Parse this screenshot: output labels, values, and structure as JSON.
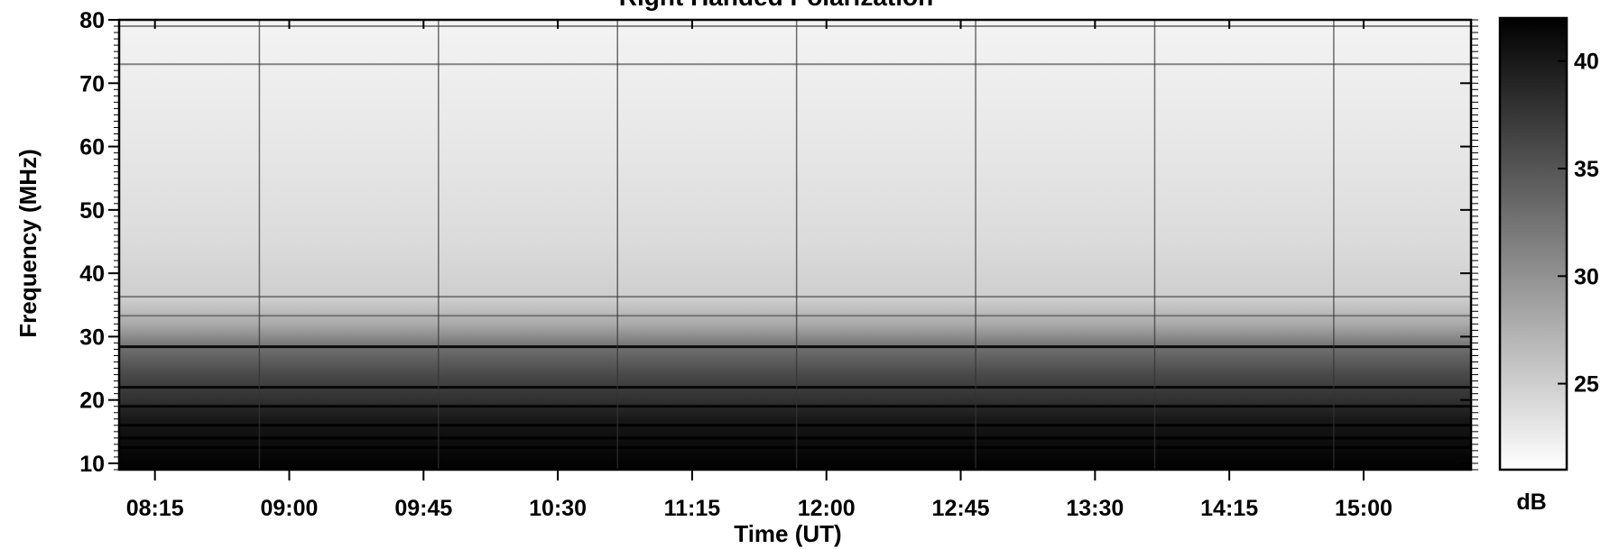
{
  "chart_data": {
    "type": "heatmap",
    "title": "Right Handed Polarization",
    "xlabel": "Time (UT)",
    "ylabel": "Frequency (MHz)",
    "x_ticks": [
      "08:15",
      "09:00",
      "09:45",
      "10:30",
      "11:15",
      "12:00",
      "12:45",
      "13:30",
      "14:15",
      "15:00"
    ],
    "x_tick_minutes": [
      495,
      540,
      585,
      630,
      675,
      720,
      765,
      810,
      855,
      900
    ],
    "xlim_minutes": [
      483,
      936
    ],
    "y_ticks": [
      10,
      20,
      30,
      40,
      50,
      60,
      70,
      80
    ],
    "ylim": [
      9,
      80
    ],
    "colorbar": {
      "label": "dB",
      "ticks": [
        25,
        30,
        35,
        40
      ],
      "range": [
        21,
        42
      ],
      "colormap": "gray_r",
      "low_color": "#ffffff",
      "high_color": "#000000"
    },
    "vertical_lines_minutes": [
      530,
      590,
      650,
      710,
      770,
      830,
      890
    ],
    "intensity_profile": [
      {
        "freq": 9,
        "db": 42
      },
      {
        "freq": 13,
        "db": 41
      },
      {
        "freq": 17,
        "db": 40
      },
      {
        "freq": 20,
        "db": 38
      },
      {
        "freq": 24,
        "db": 36
      },
      {
        "freq": 28,
        "db": 33
      },
      {
        "freq": 32,
        "db": 28
      },
      {
        "freq": 36,
        "db": 25
      },
      {
        "freq": 45,
        "db": 24
      },
      {
        "freq": 60,
        "db": 23
      },
      {
        "freq": 80,
        "db": 22
      }
    ],
    "interference_bands_mhz": [
      73,
      79,
      36.3,
      33.3,
      28.4,
      22,
      19,
      16,
      14,
      12.5
    ]
  }
}
